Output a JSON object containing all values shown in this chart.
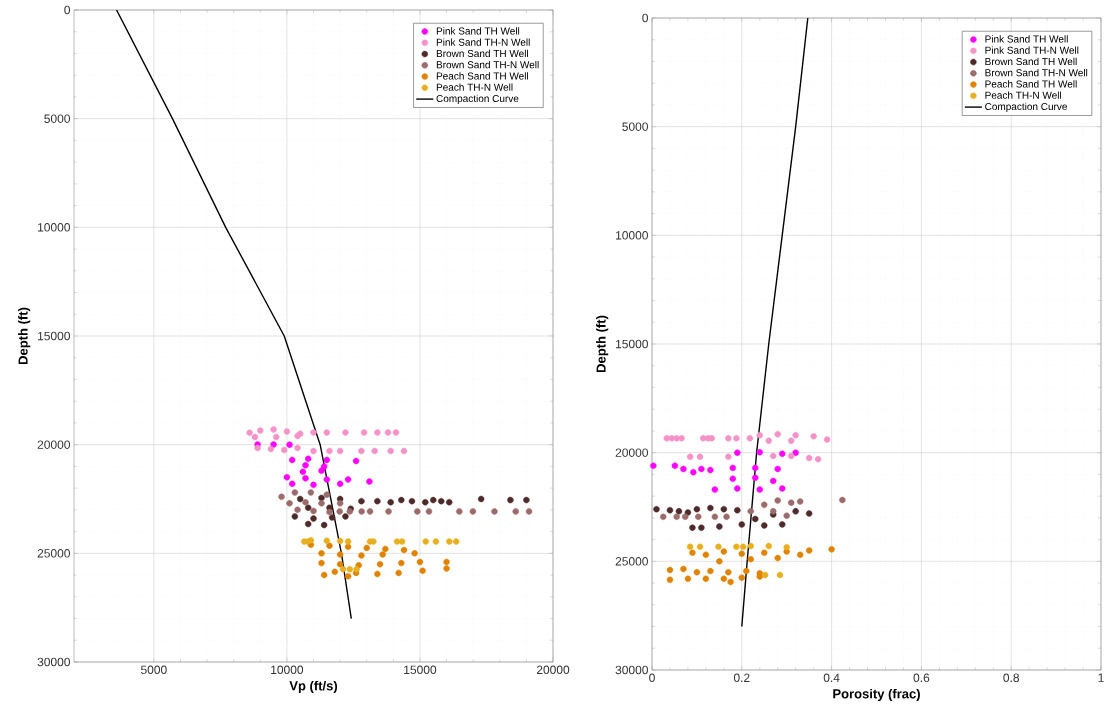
{
  "chart_data": [
    {
      "type": "scatter",
      "xlabel": "Vp (ft/s)",
      "ylabel": "Depth (ft)",
      "xlim": [
        2000,
        20000
      ],
      "ylim": [
        30000,
        0
      ],
      "xticks": [
        5000,
        10000,
        15000,
        20000
      ],
      "yticks": [
        0,
        5000,
        10000,
        15000,
        20000,
        25000,
        30000
      ],
      "grid": true,
      "legend": "top right",
      "marker": "circle",
      "series": [
        {
          "name": "Pink Sand TH Well",
          "color": "#ff00ff",
          "x": [
            8900,
            9500,
            10100,
            10200,
            10800,
            11500,
            12600,
            10700,
            11400,
            10600,
            11300,
            10000,
            10700,
            11500,
            12300,
            13100,
            10200,
            11000,
            12000
          ],
          "values": [
            19990,
            19990,
            20000,
            20700,
            20650,
            20700,
            20750,
            20950,
            21000,
            21250,
            21200,
            21500,
            21550,
            21600,
            21600,
            21700,
            21800,
            21850,
            21800
          ]
        },
        {
          "name": "Pink Sand TH-N Well",
          "color": "#f592c8",
          "x": [
            8600,
            9000,
            9500,
            10000,
            10500,
            8800,
            9600,
            10400,
            11000,
            11500,
            12200,
            12900,
            13400,
            13800,
            14100,
            8900,
            9400,
            9900,
            10400,
            11000,
            11600,
            12000,
            12800,
            13300,
            13900,
            14400
          ],
          "values": [
            19450,
            19350,
            19300,
            19400,
            19500,
            19650,
            19650,
            19600,
            19440,
            19440,
            19440,
            19440,
            19440,
            19440,
            19440,
            20150,
            20200,
            20250,
            20150,
            20290,
            20290,
            20290,
            20290,
            20290,
            20290,
            20290
          ]
        },
        {
          "name": "Brown Sand TH Well",
          "color": "#4e2a2a",
          "x": [
            10500,
            11300,
            12000,
            12800,
            10800,
            11600,
            12400,
            10300,
            11000,
            11700,
            12200,
            10800,
            11400,
            13400,
            13900,
            14300,
            14700,
            15200,
            15500,
            15800,
            16100,
            17300,
            18400,
            19000
          ],
          "values": [
            22500,
            22450,
            22500,
            22600,
            22900,
            22900,
            22950,
            23300,
            23400,
            23350,
            23300,
            23650,
            23700,
            22600,
            22650,
            22550,
            22600,
            22650,
            22550,
            22600,
            22650,
            22500,
            22550,
            22550
          ]
        },
        {
          "name": "Brown Sand TH-N Well",
          "color": "#9c6b6b",
          "x": [
            9800,
            10300,
            10900,
            11500,
            10100,
            10700,
            11300,
            12000,
            10400,
            11000,
            11600,
            11985,
            12365,
            12810,
            13125,
            13820,
            14900,
            15340,
            16480,
            16990,
            17800,
            18600,
            19100
          ],
          "values": [
            22400,
            22200,
            22200,
            22300,
            22700,
            22650,
            22700,
            22700,
            23000,
            23050,
            23100,
            23070,
            23070,
            23070,
            23070,
            23070,
            23070,
            23070,
            23070,
            23070,
            23070,
            23070,
            23070
          ]
        },
        {
          "name": "Peach Sand TH Well",
          "color": "#e08400",
          "x": [
            10900,
            11600,
            12300,
            13000,
            13700,
            14400,
            11300,
            12000,
            12800,
            13600,
            14800,
            11300,
            12000,
            12700,
            13500,
            14300,
            15000,
            16000,
            11800,
            12600,
            13400,
            14200,
            15100,
            16000,
            11400,
            12300
          ],
          "values": [
            24600,
            24650,
            24700,
            24750,
            24800,
            24850,
            25000,
            25050,
            25100,
            25050,
            25000,
            25450,
            25500,
            25550,
            25500,
            25450,
            25400,
            25400,
            25850,
            25900,
            25950,
            25900,
            25800,
            25700,
            26000,
            26050
          ]
        },
        {
          "name": "Peach TH-N Well",
          "color": "#e8b020",
          "x": [
            10650,
            10780,
            12300,
            13125,
            13250,
            14140,
            14330,
            15220,
            15600,
            16100,
            16360,
            10900,
            11500,
            12000,
            12110,
            12365,
            12620
          ],
          "values": [
            24460,
            24460,
            24460,
            24460,
            24460,
            24460,
            24460,
            24460,
            24460,
            24460,
            24460,
            24400,
            24420,
            24430,
            25730,
            25730,
            25730
          ]
        },
        {
          "name": "Compaction Curve",
          "color": "#000000",
          "type": "line",
          "marker": "none",
          "x": [
            3600,
            5700,
            7700,
            9900,
            11250,
            12050,
            12420
          ],
          "values": [
            0,
            5000,
            10000,
            15000,
            20000,
            25000,
            28000
          ]
        }
      ]
    },
    {
      "type": "scatter",
      "xlabel": "Porosity (frac)",
      "ylabel": "Depth (ft)",
      "xlim": [
        0,
        1
      ],
      "ylim": [
        30000,
        0
      ],
      "xticks": [
        0,
        0.2,
        0.4,
        0.6,
        0.8,
        1
      ],
      "yticks": [
        0,
        5000,
        10000,
        15000,
        20000,
        25000,
        30000
      ],
      "grid": true,
      "legend": "top right",
      "marker": "circle",
      "series": [
        {
          "name": "Pink Sand TH Well",
          "color": "#ff00ff",
          "x": [
            0.19,
            0.24,
            0.29,
            0.32,
            0.003,
            0.051,
            0.07,
            0.092,
            0.11,
            0.13,
            0.18,
            0.23,
            0.28,
            0.18,
            0.23,
            0.27,
            0.14,
            0.19,
            0.24,
            0.29
          ],
          "values": [
            20000,
            19980,
            20050,
            20000,
            20600,
            20600,
            20750,
            20900,
            20750,
            20800,
            20700,
            20700,
            20750,
            21200,
            21150,
            21300,
            21700,
            21650,
            21700,
            21650
          ]
        },
        {
          "name": "Pink Sand TH-N Well",
          "color": "#f592c8",
          "x": [
            0.24,
            0.28,
            0.32,
            0.36,
            0.39,
            0.26,
            0.31,
            0.27,
            0.31,
            0.35,
            0.37,
            0.033,
            0.044,
            0.055,
            0.066,
            0.114,
            0.125,
            0.133,
            0.17,
            0.188,
            0.218,
            0.085,
            0.107,
            0.17
          ],
          "values": [
            19200,
            19150,
            19200,
            19250,
            19400,
            19450,
            19450,
            20150,
            20150,
            20250,
            20300,
            19340,
            19340,
            19340,
            19340,
            19340,
            19340,
            19340,
            19340,
            19340,
            19340,
            20190,
            20190,
            20190
          ]
        },
        {
          "name": "Brown Sand TH Well",
          "color": "#4e2a2a",
          "x": [
            0.01,
            0.04,
            0.06,
            0.08,
            0.1,
            0.13,
            0.16,
            0.19,
            0.27,
            0.32,
            0.35,
            0.09,
            0.11,
            0.15,
            0.2,
            0.25,
            0.29,
            0.23
          ],
          "values": [
            22600,
            22650,
            22700,
            22750,
            22600,
            22550,
            22600,
            22650,
            22850,
            22700,
            22800,
            23450,
            23450,
            23400,
            23300,
            23350,
            23300,
            23050
          ]
        },
        {
          "name": "Brown Sand TH-N Well",
          "color": "#9c6b6b",
          "x": [
            0.22,
            0.25,
            0.28,
            0.31,
            0.33,
            0.27,
            0.3,
            0.025,
            0.055,
            0.074,
            0.103,
            0.14,
            0.166,
            0.424
          ],
          "values": [
            22700,
            22400,
            22200,
            22300,
            22250,
            22700,
            22900,
            22950,
            22950,
            22950,
            22950,
            22950,
            22950,
            22180
          ]
        },
        {
          "name": "Peach Sand TH Well",
          "color": "#e08400",
          "x": [
            0.09,
            0.12,
            0.16,
            0.2,
            0.25,
            0.3,
            0.35,
            0.4,
            0.22,
            0.28,
            0.33,
            0.15,
            0.04,
            0.07,
            0.1,
            0.13,
            0.17,
            0.21,
            0.24,
            0.04,
            0.08,
            0.12,
            0.16,
            0.2,
            0.24,
            0.175
          ],
          "values": [
            24600,
            24700,
            24550,
            24650,
            24600,
            24550,
            24500,
            24450,
            24900,
            24850,
            24700,
            25000,
            25400,
            25350,
            25500,
            25450,
            25500,
            25450,
            25550,
            25850,
            25800,
            25800,
            25800,
            25750,
            25700,
            25950
          ]
        },
        {
          "name": "Peach TH-N Well",
          "color": "#e8b020",
          "x": [
            0.085,
            0.107,
            0.148,
            0.188,
            0.203,
            0.22,
            0.26,
            0.3,
            0.252,
            0.285
          ],
          "values": [
            24330,
            24330,
            24330,
            24330,
            24330,
            24300,
            24300,
            24350,
            25630,
            25630
          ]
        },
        {
          "name": "Compaction Curve",
          "color": "#000000",
          "type": "line",
          "marker": "none",
          "x": [
            0.347,
            0.32,
            0.29,
            0.26,
            0.233,
            0.212,
            0.2
          ],
          "values": [
            0,
            5000,
            10000,
            15000,
            20000,
            25000,
            28000
          ]
        }
      ]
    }
  ]
}
